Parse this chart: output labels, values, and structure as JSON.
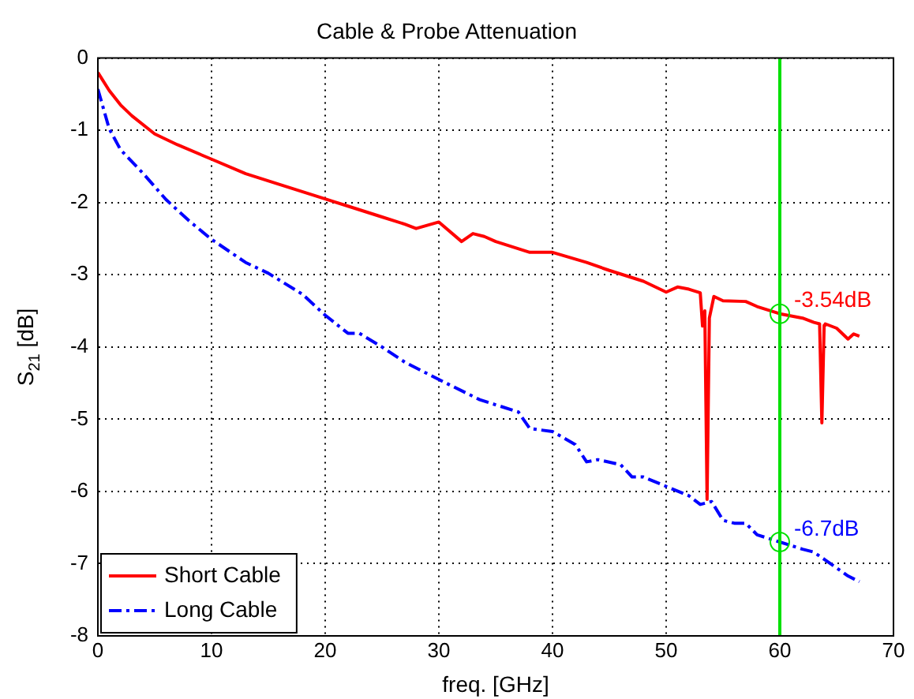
{
  "chart_data": {
    "type": "line",
    "title": "Cable & Probe Attenuation",
    "xlabel": "freq. [GHz]",
    "ylabel": "S$_{21}$ [dB]",
    "xlim": [
      0,
      70
    ],
    "xticks": [
      0,
      10,
      20,
      30,
      40,
      50,
      60,
      70
    ],
    "ylim": [
      -8,
      0
    ],
    "yticks": [
      -8,
      -7,
      -6,
      -5,
      -4,
      -3,
      -2,
      -1,
      0
    ],
    "grid": true,
    "legend": "bottom left",
    "marker": "none",
    "series": [
      {
        "name": "Short Cable",
        "color": "#ff0000",
        "line_style": "solid",
        "x": [
          0,
          1,
          2,
          3,
          5,
          7,
          10,
          13,
          16,
          20,
          22,
          25,
          27,
          28,
          30,
          32,
          33,
          34,
          35,
          38,
          40,
          43,
          45,
          48,
          50,
          51,
          52,
          53,
          53.2,
          53.4,
          53.6,
          53.8,
          54.2,
          55,
          57,
          58,
          60,
          61,
          62,
          63,
          63.5,
          63.7,
          63.9,
          64,
          65,
          66,
          66.5,
          67
        ],
        "values": [
          -0.2,
          -0.45,
          -0.65,
          -0.8,
          -1.05,
          -1.2,
          -1.4,
          -1.6,
          -1.75,
          -1.95,
          -2.05,
          -2.2,
          -2.3,
          -2.36,
          -2.27,
          -2.54,
          -2.43,
          -2.47,
          -2.54,
          -2.69,
          -2.69,
          -2.83,
          -2.94,
          -3.09,
          -3.24,
          -3.17,
          -3.2,
          -3.25,
          -3.71,
          -3.5,
          -6.11,
          -3.6,
          -3.3,
          -3.36,
          -3.37,
          -3.44,
          -3.54,
          -3.57,
          -3.6,
          -3.66,
          -3.68,
          -5.05,
          -3.7,
          -3.68,
          -3.74,
          -3.89,
          -3.82,
          -3.85
        ]
      },
      {
        "name": "Long Cable",
        "color": "#0000ff",
        "line_style": "dashed",
        "x": [
          0,
          1,
          2,
          4,
          6,
          8,
          10,
          13,
          15,
          18,
          20,
          22,
          23,
          25,
          27,
          30,
          33.6,
          35,
          37,
          38,
          40,
          42,
          43,
          44,
          46,
          47,
          48,
          50,
          52,
          53,
          54,
          55,
          56,
          57,
          58,
          60,
          62,
          63,
          64,
          65,
          66,
          67
        ],
        "values": [
          -0.43,
          -0.98,
          -1.27,
          -1.6,
          -1.96,
          -2.25,
          -2.51,
          -2.83,
          -2.98,
          -3.27,
          -3.56,
          -3.81,
          -3.81,
          -4.0,
          -4.21,
          -4.45,
          -4.73,
          -4.8,
          -4.9,
          -5.13,
          -5.17,
          -5.35,
          -5.59,
          -5.56,
          -5.63,
          -5.8,
          -5.8,
          -5.93,
          -6.06,
          -6.18,
          -6.14,
          -6.4,
          -6.44,
          -6.44,
          -6.6,
          -6.7,
          -6.8,
          -6.84,
          -6.95,
          -7.06,
          -7.17,
          -7.25
        ]
      }
    ],
    "ref_lines": [
      {
        "axis": "x",
        "value": 60,
        "color": "#00e000"
      }
    ],
    "annotations": [
      {
        "text": "-3.54dB",
        "x": 60,
        "y": -3.54
      },
      {
        "text": "-6.7dB",
        "x": 60,
        "y": -6.7
      }
    ]
  }
}
